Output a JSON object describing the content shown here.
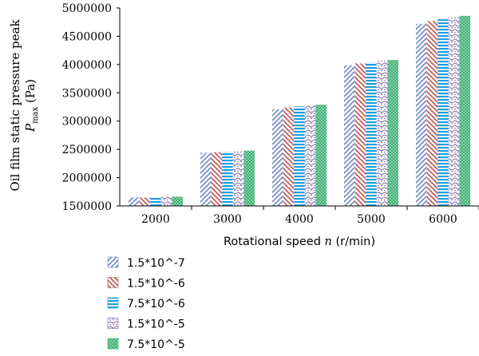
{
  "chart_data": {
    "type": "bar",
    "title": "",
    "xlabel_prefix": "Rotational speed ",
    "xlabel_var": "n",
    "xlabel_suffix": " (r/min)",
    "ylabel_line1": "Oil film static pressure peak",
    "ylabel_var": "P",
    "ylabel_sub": "max",
    "ylabel_unit": " (Pa)",
    "ylim": [
      1500000,
      5000000
    ],
    "yticks": [
      "1500000",
      "2000000",
      "2500000",
      "3000000",
      "3500000",
      "4000000",
      "4500000",
      "5000000"
    ],
    "ytick_values": [
      1500000,
      2000000,
      2500000,
      3000000,
      3500000,
      4000000,
      4500000,
      5000000
    ],
    "categories": [
      "2000",
      "3000",
      "4000",
      "5000",
      "6000"
    ],
    "legend_position": "bottom-left",
    "grid": false,
    "series": [
      {
        "name": "1.5*10^-7",
        "color": "#6b86c4",
        "pattern": "diag-right",
        "values": [
          1650000,
          2440000,
          3210000,
          3990000,
          4720000
        ]
      },
      {
        "name": "1.5*10^-6",
        "color": "#c0504d",
        "pattern": "diag-left",
        "values": [
          1650000,
          2450000,
          3240000,
          4020000,
          4770000
        ]
      },
      {
        "name": "7.5*10^-6",
        "color": "#1f9be0",
        "pattern": "horizontal",
        "values": [
          1660000,
          2460000,
          3260000,
          4040000,
          4800000
        ]
      },
      {
        "name": "1.5*10^-5",
        "color": "#7f5fa8",
        "pattern": "wave",
        "values": [
          1660000,
          2470000,
          3280000,
          4070000,
          4840000
        ]
      },
      {
        "name": "7.5*10^-5",
        "color": "#3cb073",
        "pattern": "dots",
        "values": [
          1665000,
          2480000,
          3290000,
          4080000,
          4860000
        ]
      }
    ]
  }
}
